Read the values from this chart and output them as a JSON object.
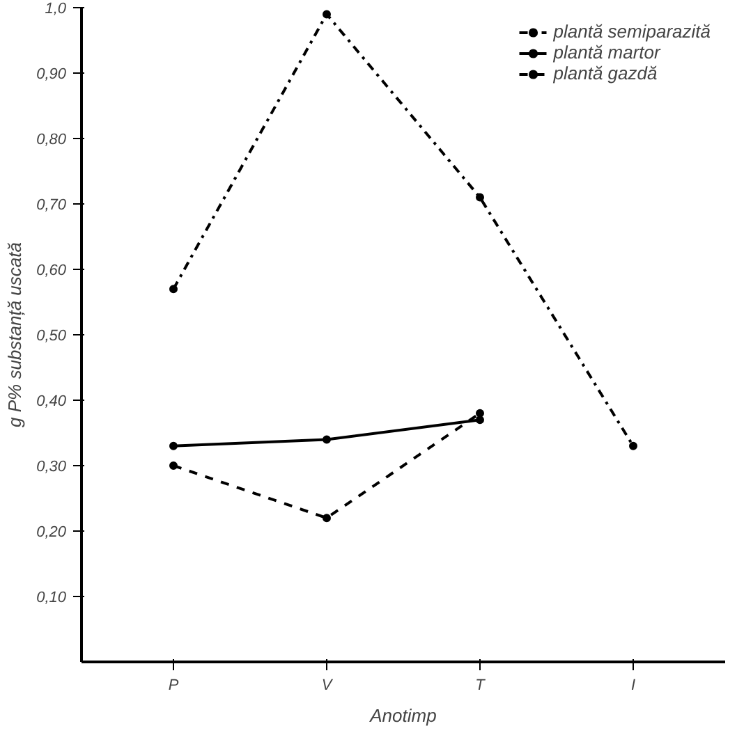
{
  "chart_data": {
    "type": "line",
    "xlabel": "Anotimp",
    "ylabel": "g P% substanță uscată",
    "categories": [
      "P",
      "V",
      "T",
      "I"
    ],
    "series": [
      {
        "name": "plantă semiparazită",
        "color": "#000000",
        "line_style": "dashdot",
        "values": [
          0.57,
          0.99,
          0.71,
          0.33
        ]
      },
      {
        "name": "plantă martor",
        "color": "#000000",
        "line_style": "solid",
        "values": [
          0.33,
          0.34,
          0.37,
          null
        ]
      },
      {
        "name": "plantă gazdă",
        "color": "#000000",
        "line_style": "dashed",
        "values": [
          0.3,
          0.22,
          0.38,
          null
        ]
      }
    ],
    "ylim": [
      0,
      1.0
    ],
    "yticks": [
      {
        "value": 0.1,
        "label": "0,10"
      },
      {
        "value": 0.2,
        "label": "0,20"
      },
      {
        "value": 0.3,
        "label": "0,30"
      },
      {
        "value": 0.4,
        "label": "0,40"
      },
      {
        "value": 0.5,
        "label": "0,50"
      },
      {
        "value": 0.6,
        "label": "0,60"
      },
      {
        "value": 0.7,
        "label": "0,70"
      },
      {
        "value": 0.8,
        "label": "0,80"
      },
      {
        "value": 0.9,
        "label": "0,90"
      },
      {
        "value": 1.0,
        "label": "1,0"
      }
    ],
    "marker": "circle",
    "grid": false,
    "legend": "top right"
  }
}
